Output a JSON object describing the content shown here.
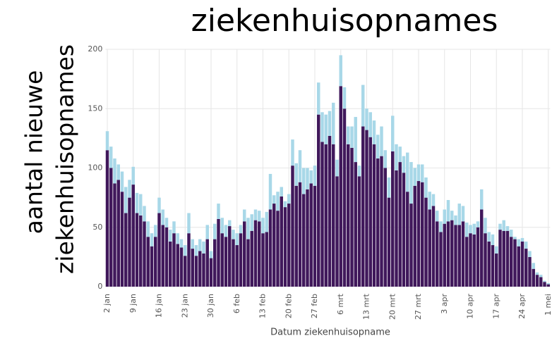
{
  "chart_data": {
    "type": "stacked_bar",
    "title": "ziekenhuisopnames",
    "ylabel": [
      "aantal nieuwe",
      "ziekenhuisopnames"
    ],
    "xlabel": "Datum ziekenhuisopname",
    "categories": [
      "2 jan",
      null,
      null,
      null,
      null,
      null,
      null,
      "9 jan",
      null,
      null,
      null,
      null,
      null,
      null,
      "16 jan",
      null,
      null,
      null,
      null,
      null,
      null,
      "23 jan",
      null,
      null,
      null,
      null,
      null,
      null,
      "30 jan",
      null,
      null,
      null,
      null,
      null,
      null,
      "6 feb",
      null,
      null,
      null,
      null,
      null,
      null,
      "13 feb",
      null,
      null,
      null,
      null,
      null,
      null,
      "20 feb",
      null,
      null,
      null,
      null,
      null,
      null,
      "27 feb",
      null,
      null,
      null,
      null,
      null,
      null,
      "6 mrt",
      null,
      null,
      null,
      null,
      null,
      null,
      "13 mrt",
      null,
      null,
      null,
      null,
      null,
      null,
      "20 mrt",
      null,
      null,
      null,
      null,
      null,
      null,
      "27 mrt",
      null,
      null,
      null,
      null,
      null,
      null,
      "3 apr",
      null,
      null,
      null,
      null,
      null,
      null,
      "10 apr",
      null,
      null,
      null,
      null,
      null,
      null,
      "17 apr",
      null,
      null,
      null,
      null,
      null,
      null,
      "24 apr",
      null,
      null,
      null,
      null,
      null,
      null,
      "1 mei"
    ],
    "series": [
      {
        "color": "#40185b",
        "values": [
          115,
          100,
          87,
          90,
          80,
          62,
          75,
          86,
          62,
          60,
          55,
          42,
          34,
          42,
          62,
          52,
          50,
          38,
          45,
          36,
          33,
          26,
          45,
          32,
          26,
          30,
          28,
          40,
          24,
          40,
          57,
          45,
          42,
          51,
          40,
          35,
          45,
          55,
          40,
          47,
          56,
          55,
          45,
          46,
          65,
          70,
          64,
          76,
          67,
          70,
          102,
          85,
          88,
          78,
          82,
          87,
          85,
          145,
          122,
          120,
          127,
          120,
          93,
          169,
          150,
          120,
          117,
          105,
          93,
          135,
          132,
          126,
          120,
          108,
          110,
          100,
          75,
          114,
          98,
          105,
          96,
          80,
          70,
          85,
          89,
          88,
          75,
          65,
          68,
          55,
          46,
          53,
          55,
          56,
          52,
          52,
          55,
          42,
          45,
          44,
          50,
          65,
          45,
          38,
          35,
          28,
          48,
          47,
          47,
          42,
          40,
          34,
          38,
          32,
          25,
          15,
          10,
          8,
          4,
          2
        ]
      },
      {
        "color": "#a8d8e8",
        "values": [
          16,
          18,
          21,
          13,
          17,
          22,
          15,
          15,
          17,
          18,
          13,
          13,
          11,
          10,
          13,
          13,
          8,
          10,
          10,
          9,
          7,
          9,
          17,
          8,
          9,
          10,
          10,
          12,
          6,
          13,
          13,
          13,
          10,
          5,
          8,
          10,
          7,
          10,
          18,
          14,
          9,
          9,
          13,
          17,
          30,
          7,
          16,
          8,
          5,
          8,
          22,
          19,
          27,
          22,
          18,
          11,
          17,
          27,
          25,
          25,
          21,
          35,
          14,
          26,
          18,
          15,
          18,
          38,
          9,
          35,
          18,
          21,
          20,
          20,
          25,
          15,
          17,
          30,
          22,
          13,
          14,
          33,
          35,
          15,
          14,
          15,
          17,
          15,
          10,
          9,
          9,
          12,
          18,
          8,
          8,
          18,
          13,
          12,
          7,
          9,
          5,
          17,
          13,
          8,
          9,
          6,
          5,
          9,
          4,
          6,
          2,
          6,
          3,
          6,
          5,
          5,
          2,
          2,
          1,
          1
        ]
      }
    ],
    "ylim": [
      0,
      200
    ],
    "yticks": [
      0,
      50,
      100,
      150,
      200
    ],
    "grid": true
  }
}
